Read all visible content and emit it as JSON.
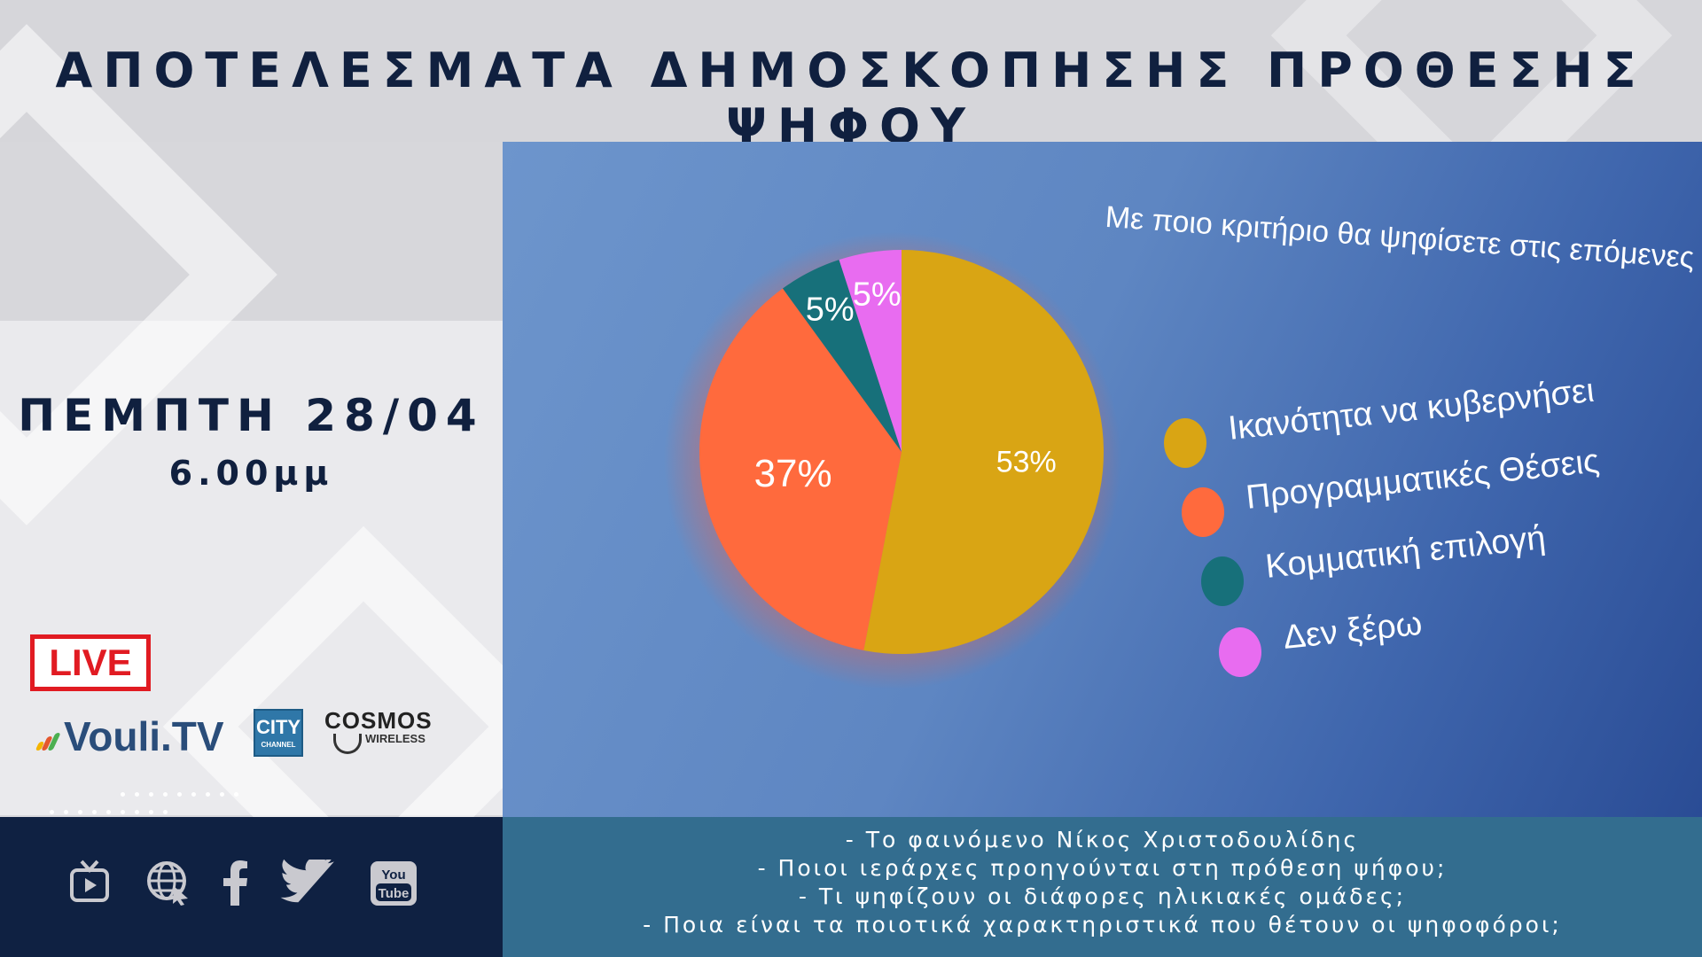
{
  "header": {
    "title": "ΑΠΟΤΕΛΕΣΜΑΤΑ ΔΗΜΟΣΚΟΠΗΣΗΣ ΠΡΟΘΕΣΗΣ ΨΗΦΟΥ"
  },
  "schedule": {
    "date": "ΠΕΜΠΤΗ 28/04",
    "time": "6.00μμ"
  },
  "badges": {
    "live": "LIVE"
  },
  "logos": {
    "vouli": "Vouli.TV",
    "city_top": "CITY",
    "city_bottom": "CHANNEL",
    "cosmos_top": "COSMOS",
    "cosmos_bottom": "WIRELESS"
  },
  "social_icons": [
    "tv-play-icon",
    "globe-icon",
    "facebook-icon",
    "twitter-icon",
    "youtube-icon"
  ],
  "youtube_text_top": "You",
  "youtube_text_bottom": "Tube",
  "headlines": [
    "-   Το φαινόμενο Νίκος Χριστοδουλίδης",
    "-   Ποιοι ιεράρχες προηγούνται στη πρόθεση ψήφου;",
    "-   Τι ψηφίζουν οι διάφορες ηλικιακές ομάδες;",
    "-   Ποια είναι τα ποιοτικά χαρακτηριστικά που θέτουν οι ψηφοφόροι;"
  ],
  "colors": {
    "navy": "#10203f",
    "live_red": "#e11b22",
    "footer_left": "#0f2142",
    "footer_right": "#336d8f"
  },
  "chart_data": {
    "type": "pie",
    "title": "Με ποιο κριτήριο θα ψηφίσετε στις επόμενες προεδρικές εκλογές;",
    "categories": [
      "Ικανότητα να κυβερνήσει",
      "Προγραμματικές Θέσεις",
      "Κομματική επιλογή",
      "Δεν ξέρω"
    ],
    "values": [
      53,
      37,
      5,
      5
    ],
    "value_labels": [
      "53%",
      "37%",
      "5%",
      "5%"
    ],
    "colors": [
      "#d9a514",
      "#ff6a3d",
      "#17707a",
      "#e86cf0"
    ],
    "legend_position": "right"
  }
}
